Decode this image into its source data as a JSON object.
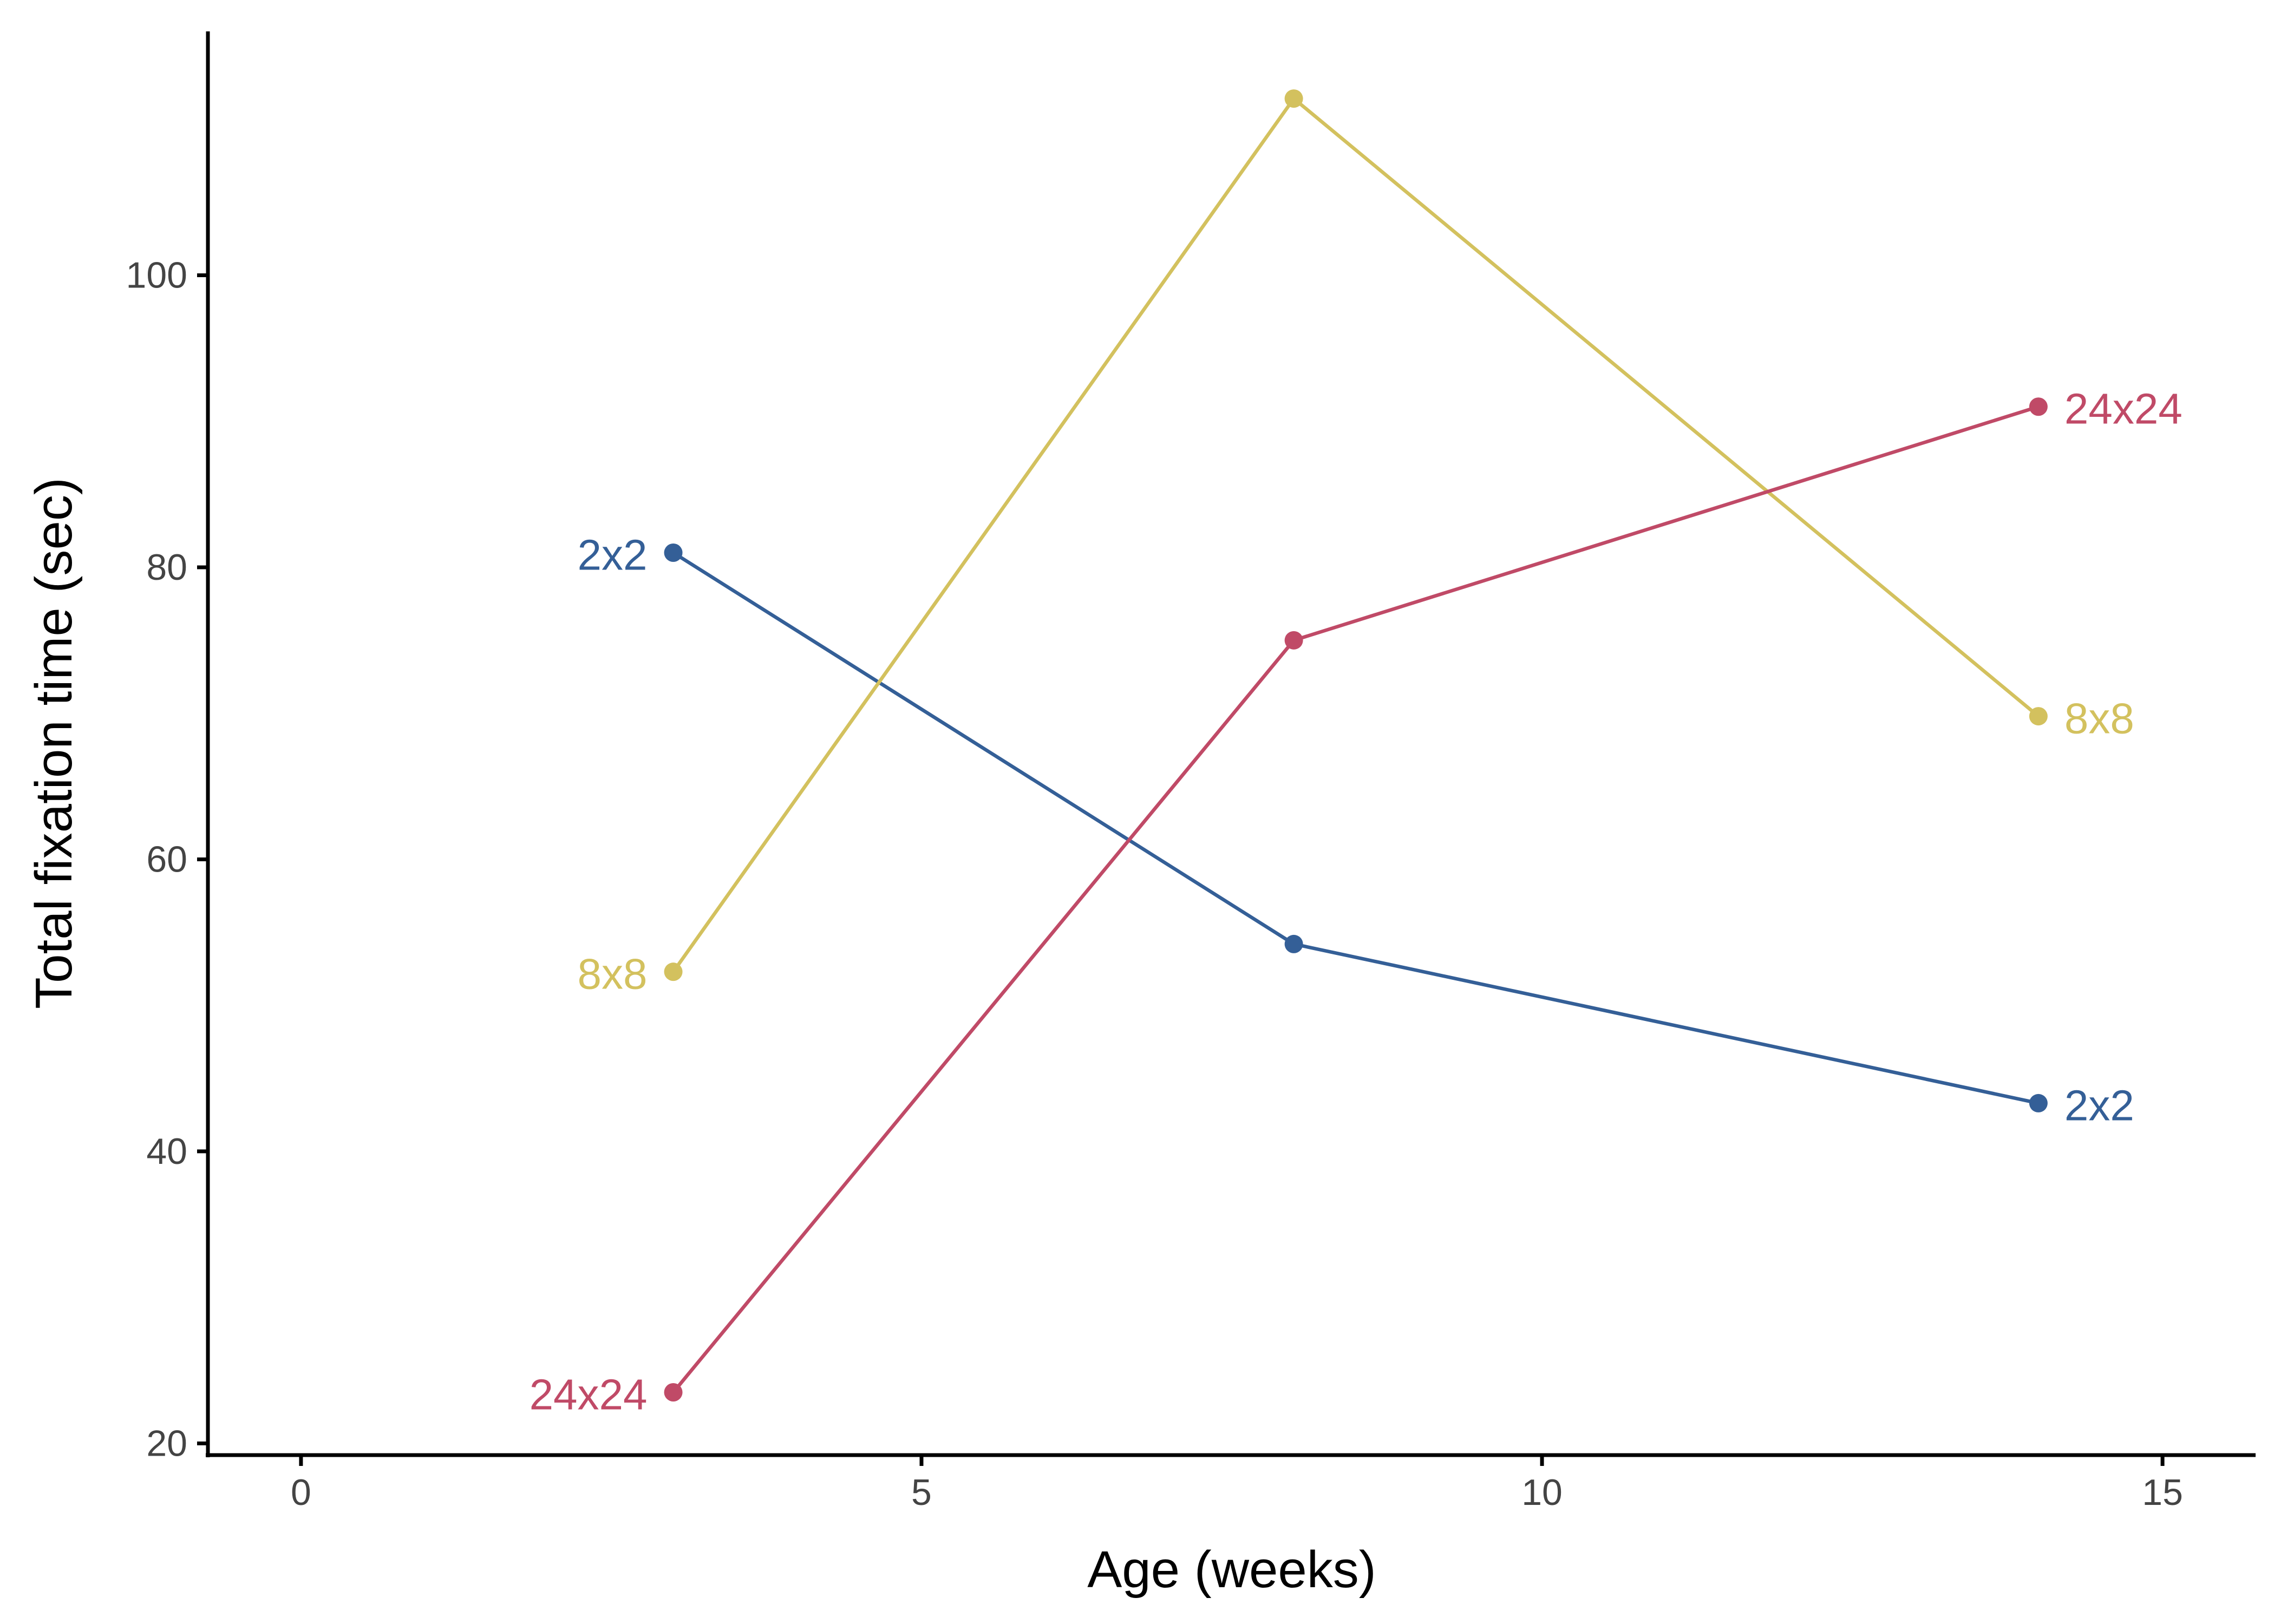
{
  "chart_data": {
    "type": "line",
    "title": "",
    "xlabel": "Age (weeks)",
    "ylabel": "Total fixation time (sec)",
    "xlim": [
      -0.75,
      15.75
    ],
    "ylim": [
      19.2,
      116.7
    ],
    "xticks": [
      0,
      5,
      10,
      15
    ],
    "yticks": [
      20,
      40,
      60,
      80,
      100
    ],
    "xtick_labels": [
      "0",
      "5",
      "10",
      "15"
    ],
    "ytick_labels": [
      "20",
      "40",
      "60",
      "80",
      "100"
    ],
    "grid": false,
    "legend": "direct labels at line ends",
    "x": [
      3,
      8,
      14
    ],
    "series": [
      {
        "name": "2x2",
        "color": "#345f97",
        "values": [
          81.0,
          54.2,
          43.3
        ],
        "label_left": "2x2",
        "label_right": "2x2"
      },
      {
        "name": "8x8",
        "color": "#d3c15e",
        "values": [
          52.3,
          112.1,
          69.8
        ],
        "label_left": "8x8",
        "label_right": "8x8"
      },
      {
        "name": "24x24",
        "color": "#c04a67",
        "values": [
          23.5,
          75.0,
          91.0
        ],
        "label_left": "24x24",
        "label_right": "24x24"
      }
    ]
  }
}
